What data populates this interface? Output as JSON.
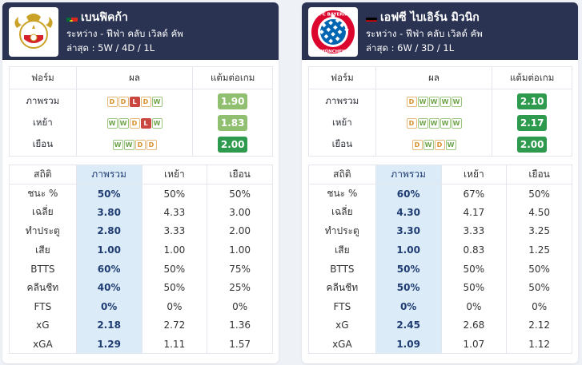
{
  "colors": {
    "W": "#9cc57e",
    "D": "#e7b777",
    "L": "#c9473f",
    "ppg_light": "#8fbf6f",
    "ppg_dark": "#2e9a4e",
    "header_bg": "#2a3352"
  },
  "teams": [
    {
      "name": "เบนฟิคก้า",
      "flag": "portugal-flag-icon",
      "logo": "benfica-crest-icon",
      "competition": "ระหว่าง - ฟีฟ่า คลับ เวิลด์ คัพ",
      "last": "ล่าสุด : 5W / 4D / 1L",
      "form": {
        "headers": [
          "ฟอร์ม",
          "ผล",
          "แต้มต่อเกม"
        ],
        "rows": [
          {
            "label": "ภาพรวม",
            "results": [
              "D",
              "D",
              "L",
              "D",
              "W"
            ],
            "ppg": "1.90",
            "ppg_style": "light"
          },
          {
            "label": "เหย้า",
            "results": [
              "W",
              "W",
              "D",
              "L",
              "W"
            ],
            "ppg": "1.83",
            "ppg_style": "light"
          },
          {
            "label": "เยือน",
            "results": [
              "W",
              "W",
              "D",
              "D"
            ],
            "ppg": "2.00",
            "ppg_style": "dark"
          }
        ]
      },
      "stats": {
        "headers": [
          "สถิติ",
          "ภาพรวม",
          "เหย้า",
          "เยือน"
        ],
        "rows": [
          {
            "label": "ชนะ %",
            "overall": "50%",
            "home": "50%",
            "away": "50%"
          },
          {
            "label": "เฉลี่ย",
            "overall": "3.80",
            "home": "4.33",
            "away": "3.00"
          },
          {
            "label": "ทำประตู",
            "overall": "2.80",
            "home": "3.33",
            "away": "2.00"
          },
          {
            "label": "เสีย",
            "overall": "1.00",
            "home": "1.00",
            "away": "1.00"
          },
          {
            "label": "BTTS",
            "overall": "60%",
            "home": "50%",
            "away": "75%"
          },
          {
            "label": "คลีนชีท",
            "overall": "40%",
            "home": "50%",
            "away": "25%"
          },
          {
            "label": "FTS",
            "overall": "0%",
            "home": "0%",
            "away": "0%"
          },
          {
            "label": "xG",
            "overall": "2.18",
            "home": "2.72",
            "away": "1.36"
          },
          {
            "label": "xGA",
            "overall": "1.29",
            "home": "1.11",
            "away": "1.57"
          }
        ]
      }
    },
    {
      "name": "เอฟซี ไบเอิร์น มิวนิก",
      "flag": "germany-flag-icon",
      "logo": "bayern-crest-icon",
      "logo_text": [
        "FC BAYERN",
        "MÜNCHEN"
      ],
      "competition": "ระหว่าง - ฟีฟ่า คลับ เวิลด์ คัพ",
      "last": "ล่าสุด : 6W / 3D / 1L",
      "form": {
        "headers": [
          "ฟอร์ม",
          "ผล",
          "แต้มต่อเกม"
        ],
        "rows": [
          {
            "label": "ภาพรวม",
            "results": [
              "D",
              "W",
              "W",
              "W",
              "W"
            ],
            "ppg": "2.10",
            "ppg_style": "dark"
          },
          {
            "label": "เหย้า",
            "results": [
              "D",
              "W",
              "W",
              "W",
              "W"
            ],
            "ppg": "2.17",
            "ppg_style": "dark"
          },
          {
            "label": "เยือน",
            "results": [
              "D",
              "W",
              "D",
              "W"
            ],
            "ppg": "2.00",
            "ppg_style": "dark"
          }
        ]
      },
      "stats": {
        "headers": [
          "สถิติ",
          "ภาพรวม",
          "เหย้า",
          "เยือน"
        ],
        "rows": [
          {
            "label": "ชนะ %",
            "overall": "60%",
            "home": "67%",
            "away": "50%"
          },
          {
            "label": "เฉลี่ย",
            "overall": "4.30",
            "home": "4.17",
            "away": "4.50"
          },
          {
            "label": "ทำประตู",
            "overall": "3.30",
            "home": "3.33",
            "away": "3.25"
          },
          {
            "label": "เสีย",
            "overall": "1.00",
            "home": "0.83",
            "away": "1.25"
          },
          {
            "label": "BTTS",
            "overall": "50%",
            "home": "50%",
            "away": "50%"
          },
          {
            "label": "คลีนชีท",
            "overall": "50%",
            "home": "50%",
            "away": "50%"
          },
          {
            "label": "FTS",
            "overall": "0%",
            "home": "0%",
            "away": "0%"
          },
          {
            "label": "xG",
            "overall": "2.45",
            "home": "2.68",
            "away": "2.12"
          },
          {
            "label": "xGA",
            "overall": "1.09",
            "home": "1.07",
            "away": "1.12"
          }
        ]
      }
    }
  ]
}
